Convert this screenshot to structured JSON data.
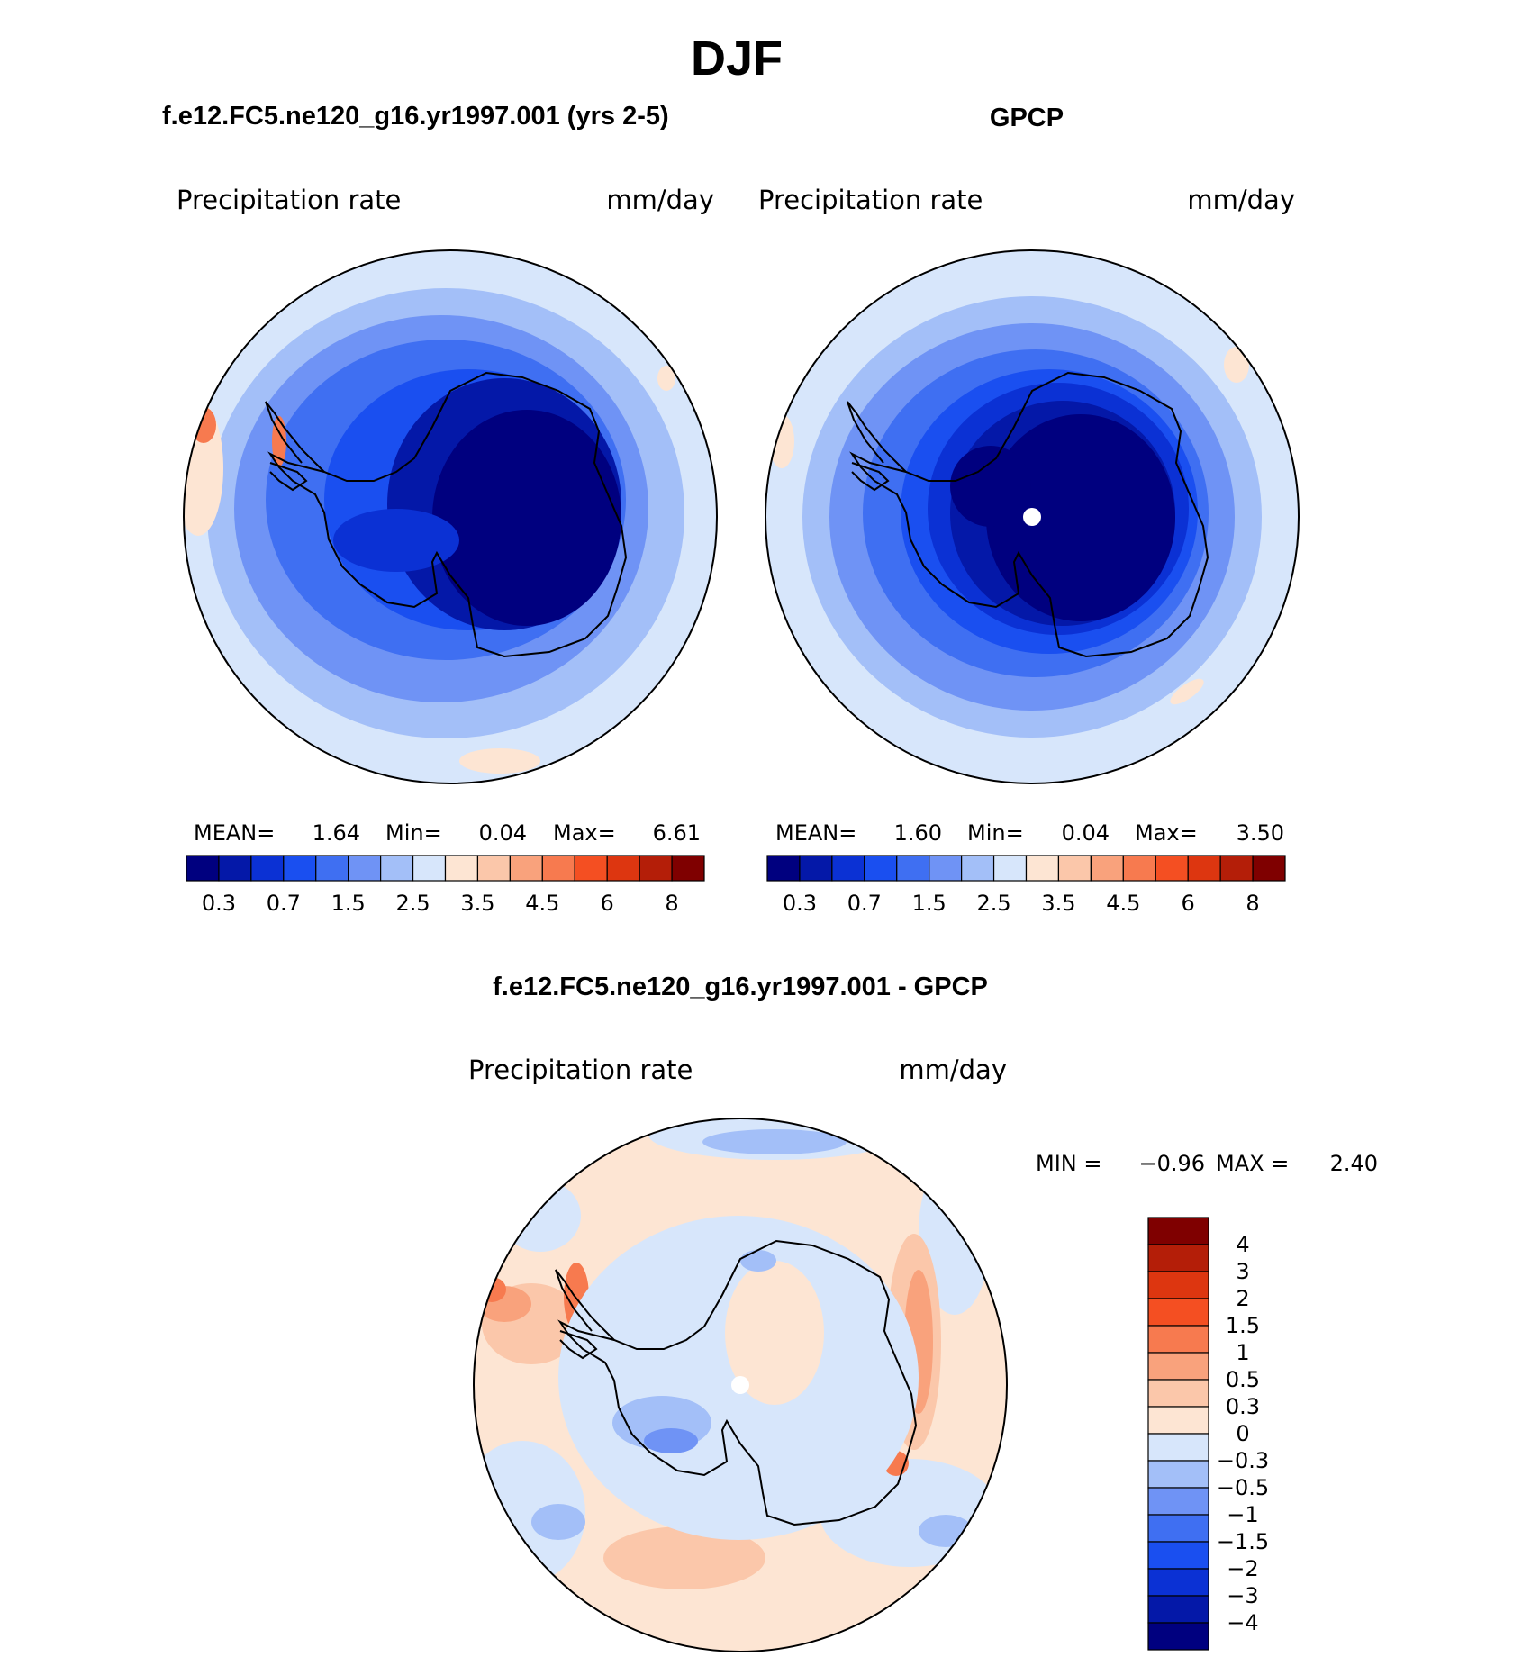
{
  "title": "DJF",
  "panels": {
    "model": {
      "header": "f.e12.FC5.ne120_g16.yr1997.001 (yrs 2-5)",
      "var_label": "Precipitation  rate",
      "units": "mm/day",
      "stats": {
        "mean_label": "MEAN=",
        "mean": "1.64",
        "min_label": "Min=",
        "min": "0.04",
        "max_label": "Max=",
        "max": "6.61"
      }
    },
    "obs": {
      "header": "GPCP",
      "var_label": "Precipitation  rate",
      "units": "mm/day",
      "stats": {
        "mean_label": "MEAN=",
        "mean": "1.60",
        "min_label": "Min=",
        "min": "0.04",
        "max_label": "Max=",
        "max": "3.50"
      }
    },
    "diff": {
      "header": "f.e12.FC5.ne120_g16.yr1997.001 - GPCP",
      "var_label": "Precipitation  rate",
      "units": "mm/day",
      "stats": {
        "min_label": "MIN =",
        "min": "−0.96",
        "max_label": "MAX =",
        "max": "2.40"
      }
    }
  },
  "colorbar_abs": {
    "colors": [
      "#00007f",
      "#0418a8",
      "#0b31d4",
      "#1a4ff0",
      "#3f6ff2",
      "#6f93f5",
      "#a3bff8",
      "#d7e6fb",
      "#fde5d3",
      "#fbc7aa",
      "#f9a27c",
      "#f77a4f",
      "#f44f22",
      "#dd3610",
      "#b41e08",
      "#7f0000"
    ],
    "tick_labels": [
      "0.3",
      "0.7",
      "1.5",
      "2.5",
      "3.5",
      "4.5",
      "6",
      "8"
    ]
  },
  "colorbar_diff": {
    "colors": [
      "#7f0000",
      "#b41e08",
      "#dd3610",
      "#f44f22",
      "#f77a4f",
      "#f9a27c",
      "#fbc7aa",
      "#fde5d3",
      "#d7e6fb",
      "#a3bff8",
      "#6f93f5",
      "#3f6ff2",
      "#1a4ff0",
      "#0b31d4",
      "#0418a8",
      "#00007f"
    ],
    "tick_labels": [
      "4",
      "3",
      "2",
      "1.5",
      "1",
      "0.5",
      "0.3",
      "0",
      "−0.3",
      "−0.5",
      "−1",
      "−1.5",
      "−2",
      "−3",
      "−4"
    ]
  }
}
